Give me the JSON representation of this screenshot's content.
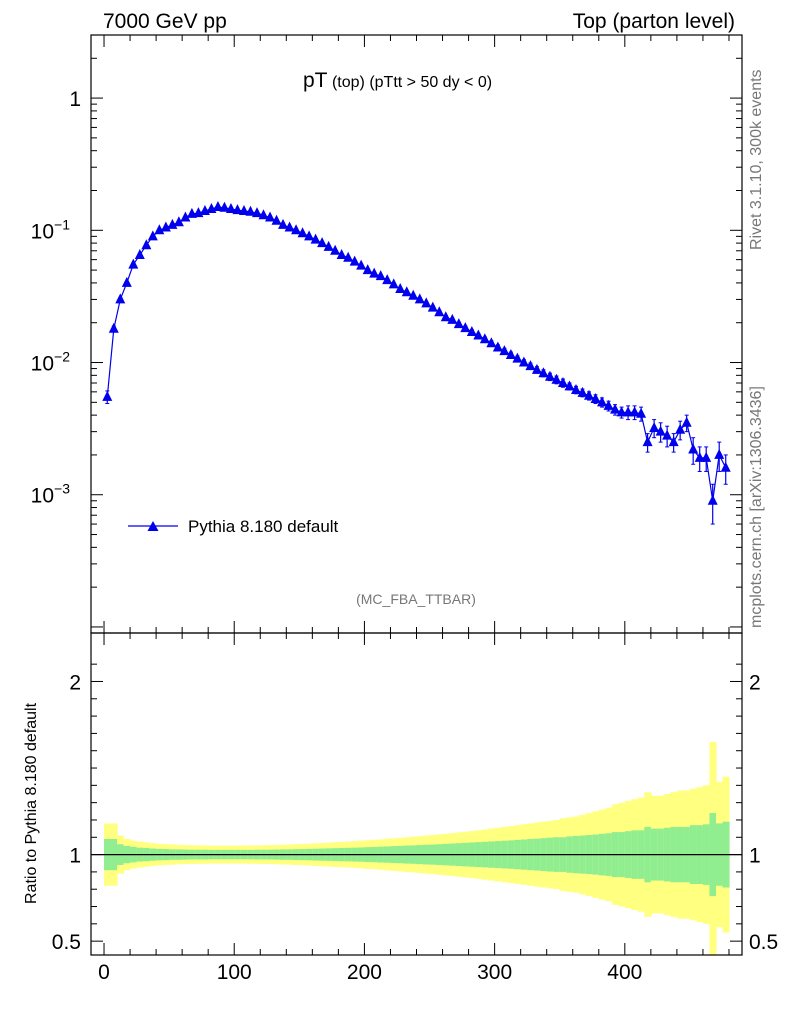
{
  "header": {
    "left_label": "7000 GeV pp",
    "right_label": "Top (parton level)"
  },
  "side_labels": {
    "rivet": "Rivet 3.1.10,  300k events",
    "mcplots": "mcplots.cern.ch [arXiv:1306.3436]"
  },
  "plot_title": {
    "main": "pT",
    "sub1": " (top) ",
    "sub2": "(pTtt > 50 dy < 0)"
  },
  "analysis_label": "(MC_FBA_TTBAR)",
  "legend": {
    "entry": "Pythia 8.180 default"
  },
  "colors": {
    "series": "#0000ee",
    "band_inner": "#90ee90",
    "band_outer": "#ffff80"
  },
  "chart_data": [
    {
      "type": "line",
      "panel": "main",
      "title": "pT (top) (pTtt > 50 dy < 0)",
      "xlabel": "",
      "ylabel": "",
      "yscale": "log",
      "xlim": [
        -10,
        490
      ],
      "ylim": [
        9e-05,
        3
      ],
      "ytick_labels": [
        {
          "value": 1,
          "base": "1",
          "exp": ""
        },
        {
          "value": 0.1,
          "base": "10",
          "exp": "−1"
        },
        {
          "value": 0.01,
          "base": "10",
          "exp": "−2"
        },
        {
          "value": 0.001,
          "base": "10",
          "exp": "−3"
        }
      ],
      "legend_position": "left",
      "series": [
        {
          "name": "Pythia 8.180 default",
          "x": [
            2.5,
            7.5,
            12.5,
            17.5,
            22.5,
            27.5,
            32.5,
            37.5,
            42.5,
            47.5,
            52.5,
            57.5,
            62.5,
            67.5,
            72.5,
            77.5,
            82.5,
            87.5,
            92.5,
            97.5,
            102.5,
            107.5,
            112.5,
            117.5,
            122.5,
            127.5,
            132.5,
            137.5,
            142.5,
            147.5,
            152.5,
            157.5,
            162.5,
            167.5,
            172.5,
            177.5,
            182.5,
            187.5,
            192.5,
            197.5,
            202.5,
            207.5,
            212.5,
            217.5,
            222.5,
            227.5,
            232.5,
            237.5,
            242.5,
            247.5,
            252.5,
            257.5,
            262.5,
            267.5,
            272.5,
            277.5,
            282.5,
            287.5,
            292.5,
            297.5,
            302.5,
            307.5,
            312.5,
            317.5,
            322.5,
            327.5,
            332.5,
            337.5,
            342.5,
            347.5,
            352.5,
            357.5,
            362.5,
            367.5,
            372.5,
            377.5,
            382.5,
            387.5,
            392.5,
            397.5,
            402.5,
            407.5,
            412.5,
            417.5,
            422.5,
            427.5,
            432.5,
            437.5,
            442.5,
            447.5,
            452.5,
            457.5,
            462.5,
            467.5,
            472.5,
            477.5
          ],
          "y": [
            0.0055,
            0.018,
            0.03,
            0.04,
            0.055,
            0.065,
            0.077,
            0.09,
            0.1,
            0.105,
            0.11,
            0.115,
            0.125,
            0.133,
            0.135,
            0.14,
            0.145,
            0.15,
            0.148,
            0.145,
            0.142,
            0.14,
            0.138,
            0.135,
            0.13,
            0.125,
            0.118,
            0.11,
            0.105,
            0.1,
            0.095,
            0.09,
            0.085,
            0.08,
            0.075,
            0.07,
            0.065,
            0.062,
            0.058,
            0.054,
            0.05,
            0.047,
            0.045,
            0.042,
            0.039,
            0.036,
            0.034,
            0.032,
            0.03,
            0.028,
            0.026,
            0.024,
            0.022,
            0.021,
            0.0195,
            0.0182,
            0.017,
            0.016,
            0.015,
            0.014,
            0.013,
            0.0122,
            0.0114,
            0.0107,
            0.01,
            0.0094,
            0.0088,
            0.0083,
            0.0078,
            0.0074,
            0.007,
            0.0066,
            0.0062,
            0.0059,
            0.0056,
            0.0053,
            0.005,
            0.0047,
            0.0044,
            0.0042,
            0.0042,
            0.0042,
            0.0041,
            0.0025,
            0.0032,
            0.003,
            0.0028,
            0.0025,
            0.0031,
            0.0035,
            0.0022,
            0.0019,
            0.0019,
            0.0009,
            0.002,
            0.0016
          ],
          "yerr": [
            0.0006,
            0.0009,
            0.001,
            0.001,
            0.0012,
            0.0013,
            0.0014,
            0.0015,
            0.0016,
            0.0016,
            0.0017,
            0.0017,
            0.0018,
            0.0018,
            0.0018,
            0.0018,
            0.0019,
            0.0019,
            0.0019,
            0.0019,
            0.0018,
            0.0018,
            0.0018,
            0.0018,
            0.0018,
            0.0017,
            0.0017,
            0.0016,
            0.0016,
            0.0016,
            0.0015,
            0.0015,
            0.0014,
            0.0014,
            0.0013,
            0.0013,
            0.0012,
            0.0012,
            0.0012,
            0.0011,
            0.0011,
            0.0011,
            0.001,
            0.001,
            0.001,
            0.0009,
            0.0009,
            0.0009,
            0.0009,
            0.0008,
            0.0008,
            0.0008,
            0.0007,
            0.0007,
            0.0007,
            0.0007,
            0.0007,
            0.0006,
            0.0006,
            0.0006,
            0.0006,
            0.0006,
            0.0006,
            0.0005,
            0.0005,
            0.0005,
            0.0005,
            0.0005,
            0.0005,
            0.0005,
            0.0005,
            0.0004,
            0.0004,
            0.0004,
            0.0004,
            0.0004,
            0.0004,
            0.0004,
            0.0004,
            0.0004,
            0.0005,
            0.0005,
            0.0005,
            0.0004,
            0.0005,
            0.0005,
            0.0005,
            0.0004,
            0.0005,
            0.0005,
            0.0005,
            0.0004,
            0.0004,
            0.0003,
            0.0005,
            0.0004
          ]
        }
      ]
    },
    {
      "type": "area",
      "panel": "ratio",
      "title": "",
      "xlabel": "",
      "ylabel": "Ratio to Pythia 8.180 default",
      "xlim": [
        -10,
        490
      ],
      "ylim": [
        0.42,
        2.28
      ],
      "xticks": [
        0,
        100,
        200,
        300,
        400
      ],
      "yticks": [
        0.5,
        1,
        2
      ],
      "reference_line": 1,
      "bands": {
        "inner_halfwidth": [
          0.09,
          0.09,
          0.06,
          0.05,
          0.045,
          0.04,
          0.038,
          0.035,
          0.033,
          0.032,
          0.03,
          0.03,
          0.029,
          0.028,
          0.028,
          0.028,
          0.027,
          0.027,
          0.027,
          0.027,
          0.027,
          0.027,
          0.027,
          0.028,
          0.028,
          0.028,
          0.029,
          0.03,
          0.03,
          0.031,
          0.032,
          0.033,
          0.034,
          0.035,
          0.036,
          0.037,
          0.038,
          0.039,
          0.04,
          0.041,
          0.043,
          0.044,
          0.046,
          0.047,
          0.049,
          0.05,
          0.052,
          0.053,
          0.055,
          0.057,
          0.058,
          0.06,
          0.062,
          0.064,
          0.066,
          0.068,
          0.07,
          0.072,
          0.074,
          0.076,
          0.078,
          0.08,
          0.082,
          0.085,
          0.087,
          0.09,
          0.092,
          0.095,
          0.098,
          0.1,
          0.1,
          0.105,
          0.108,
          0.11,
          0.113,
          0.116,
          0.12,
          0.123,
          0.13,
          0.13,
          0.135,
          0.14,
          0.14,
          0.16,
          0.15,
          0.15,
          0.155,
          0.16,
          0.16,
          0.16,
          0.17,
          0.17,
          0.175,
          0.24,
          0.18,
          0.19
        ],
        "outer_halfwidth": [
          0.18,
          0.18,
          0.11,
          0.09,
          0.08,
          0.075,
          0.07,
          0.066,
          0.062,
          0.06,
          0.058,
          0.056,
          0.055,
          0.054,
          0.053,
          0.053,
          0.052,
          0.052,
          0.052,
          0.052,
          0.052,
          0.052,
          0.053,
          0.053,
          0.054,
          0.055,
          0.056,
          0.057,
          0.058,
          0.06,
          0.061,
          0.063,
          0.065,
          0.067,
          0.069,
          0.071,
          0.073,
          0.075,
          0.078,
          0.08,
          0.083,
          0.085,
          0.088,
          0.091,
          0.094,
          0.097,
          0.1,
          0.103,
          0.106,
          0.11,
          0.113,
          0.117,
          0.12,
          0.124,
          0.128,
          0.132,
          0.136,
          0.14,
          0.145,
          0.15,
          0.155,
          0.16,
          0.165,
          0.17,
          0.175,
          0.18,
          0.185,
          0.19,
          0.195,
          0.2,
          0.21,
          0.215,
          0.22,
          0.23,
          0.24,
          0.25,
          0.26,
          0.27,
          0.29,
          0.3,
          0.31,
          0.32,
          0.33,
          0.36,
          0.34,
          0.34,
          0.35,
          0.36,
          0.37,
          0.37,
          0.38,
          0.39,
          0.4,
          0.65,
          0.42,
          0.45
        ]
      }
    }
  ]
}
